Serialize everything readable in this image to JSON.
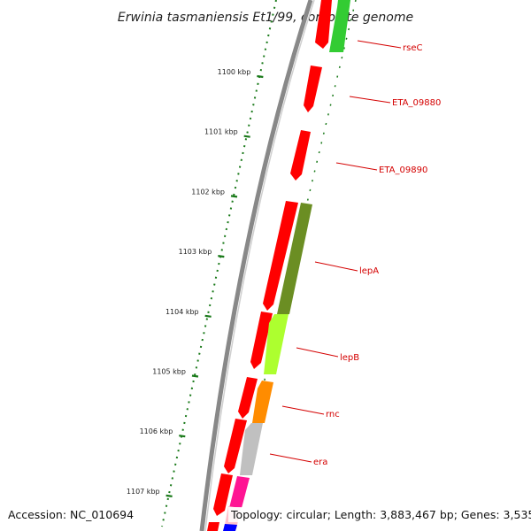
{
  "title": "Erwinia tasmaniensis Et1/99, complete genome",
  "footer": {
    "accession": "Accession: NC_010694",
    "summary": "Topology: circular; Length: 3,883,467 bp; Genes: 3,535"
  },
  "ruler": {
    "ticks": [
      {
        "label": "1100 kbp"
      },
      {
        "label": "1101 kbp"
      },
      {
        "label": "1102 kbp"
      },
      {
        "label": "1103 kbp"
      },
      {
        "label": "1104 kbp"
      },
      {
        "label": "1105 kbp"
      },
      {
        "label": "1106 kbp"
      },
      {
        "label": "1107 kbp"
      }
    ]
  },
  "genes": [
    {
      "name": "rseC",
      "color": "#33cc33"
    },
    {
      "name": "ETA_09880",
      "color": "#ff0000"
    },
    {
      "name": "ETA_09890",
      "color": "#ff0000"
    },
    {
      "name": "lepA",
      "color": "#6b8e23"
    },
    {
      "name": "lepB",
      "color": "#adff2f"
    },
    {
      "name": "rnc",
      "color": "#ff8c00"
    },
    {
      "name": "era",
      "color": "#c0c0c0"
    }
  ],
  "colors": {
    "backbone": "#888888",
    "ruler": "#1a7a1a",
    "forward_gene": "#ff0000",
    "label": "#d40000",
    "magenta_gene": "#ff1493",
    "blue_gene": "#0000ff",
    "pink_gene": "#ffc0cb"
  }
}
